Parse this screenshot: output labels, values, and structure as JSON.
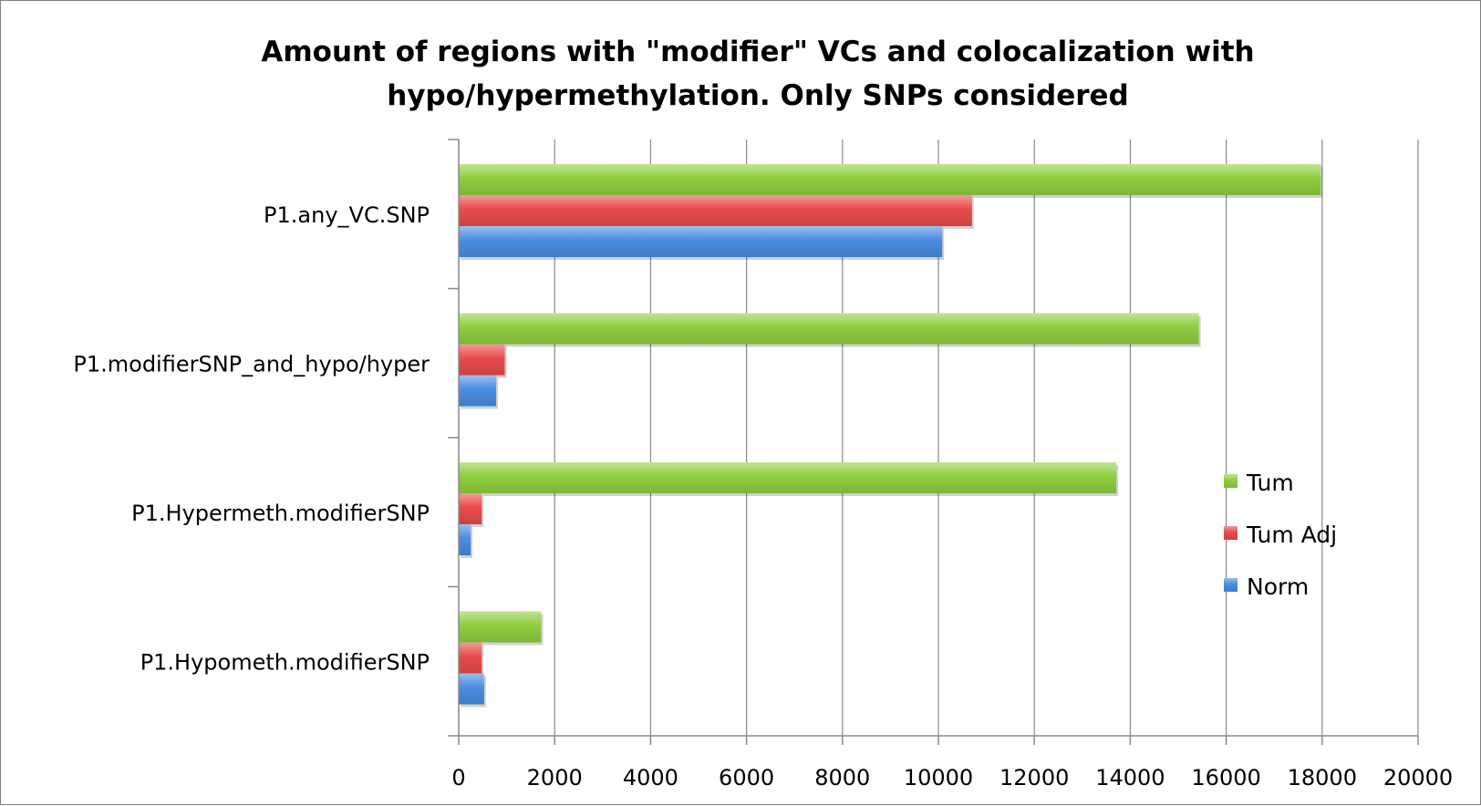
{
  "chart_data": {
    "type": "bar",
    "orientation": "horizontal",
    "title_lines": [
      "Amount of regions with \"modifier\" VCs and colocalization with",
      "hypo/hypermethylation. Only SNPs considered"
    ],
    "categories": [
      "P1.any_VC.SNP",
      "P1.modifierSNP_and_hypo/hyper",
      "P1.Hypermeth.modifierSNP",
      "P1.Hypometh.modifierSNP"
    ],
    "series": [
      {
        "name": "Tum",
        "color": "#8fce3f",
        "values": [
          17970,
          15430,
          13710,
          1720
        ]
      },
      {
        "name": "Tum Adj",
        "color": "#e84b4b",
        "values": [
          10700,
          960,
          480,
          480
        ]
      },
      {
        "name": "Norm",
        "color": "#4a8de0",
        "values": [
          10080,
          780,
          250,
          530
        ]
      }
    ],
    "xlim": [
      0,
      20000
    ],
    "xticks": [
      "0",
      "2000",
      "4000",
      "6000",
      "8000",
      "10000",
      "12000",
      "14000",
      "16000",
      "18000",
      "20000"
    ],
    "grid": "vertical",
    "legend_position": "right"
  }
}
